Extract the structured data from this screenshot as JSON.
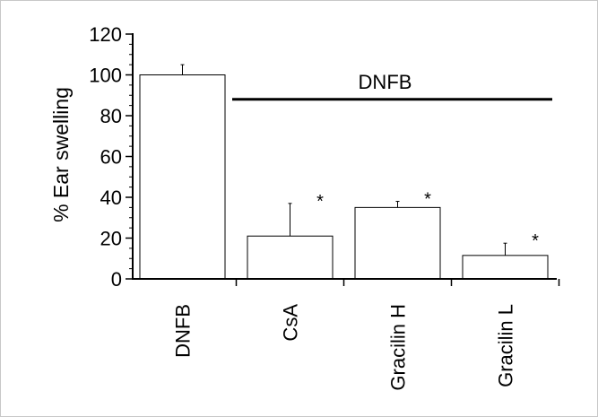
{
  "chart_data": {
    "type": "bar",
    "categories": [
      "DNFB",
      "CsA",
      "Gracilin H",
      "Gracilin L"
    ],
    "values": [
      100,
      21,
      35,
      11.5
    ],
    "error_upper": [
      105,
      37,
      38,
      17.5
    ],
    "significance": [
      "",
      "*",
      "*",
      "*"
    ],
    "ylabel": "% Ear swelling",
    "xlabel": "",
    "ylim": [
      0,
      120
    ],
    "yticks": [
      0,
      20,
      40,
      60,
      80,
      100,
      120
    ],
    "grid": false,
    "annotation": {
      "text": "DNFB",
      "y": 88,
      "from_category": "CsA",
      "to_category": "Gracilin L"
    },
    "colors": {
      "bar_fill": "#ffffff",
      "bar_stroke": "#000000",
      "frame_border": "#c8c8c8"
    }
  }
}
